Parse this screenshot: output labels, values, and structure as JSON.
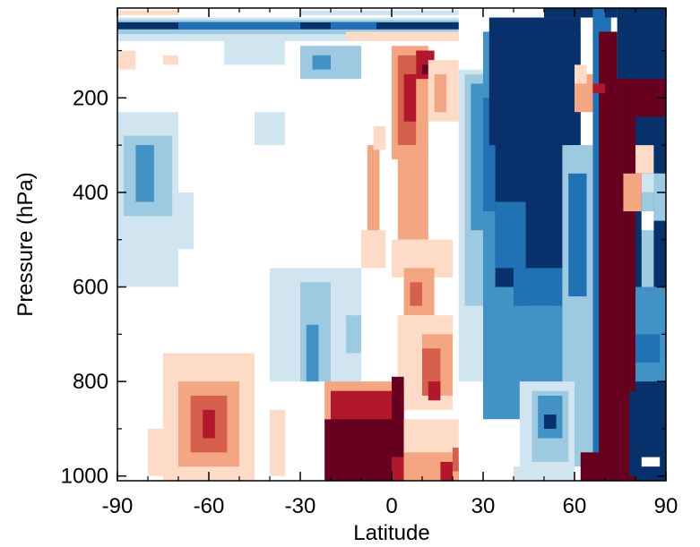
{
  "chart_data": {
    "type": "heatmap",
    "title": "",
    "xlabel": "Latitude",
    "ylabel": "Pressure (hPa)",
    "xlim": [
      -90,
      90
    ],
    "ylim": [
      1010,
      10
    ],
    "x_ticks": [
      -90,
      -60,
      -30,
      0,
      30,
      60,
      90
    ],
    "x_tick_labels": [
      "-90",
      "-60",
      "-30",
      "0",
      "30",
      "60",
      "90"
    ],
    "y_ticks": [
      200,
      400,
      600,
      800,
      1000
    ],
    "y_tick_labels": [
      "200",
      "400",
      "600",
      "800",
      "1000"
    ],
    "grid": false,
    "legend": "none",
    "colors": {
      "-3": "#08306b",
      "-2": "#2171b5",
      "-1.5": "#4292c6",
      "-1": "#9ecae1",
      "-0.5": "#d1e5f0",
      "0": "#ffffff",
      "0.5": "#fddbc7",
      "1": "#f4a582",
      "1.5": "#d6604d",
      "2": "#b2182b",
      "3": "#67001f"
    },
    "regions": [
      {
        "lat": [
          -90,
          90
        ],
        "p": [
          10,
          1010
        ],
        "v": 0
      },
      {
        "lat": [
          -90,
          60
        ],
        "p": [
          30,
          80
        ],
        "v": -0.5
      },
      {
        "lat": [
          -90,
          52
        ],
        "p": [
          35,
          65
        ],
        "v": -1
      },
      {
        "lat": [
          -90,
          50
        ],
        "p": [
          40,
          55
        ],
        "v": -3
      },
      {
        "lat": [
          -70,
          -30
        ],
        "p": [
          40,
          55
        ],
        "v": -2
      },
      {
        "lat": [
          -20,
          -5
        ],
        "p": [
          40,
          55
        ],
        "v": -2
      },
      {
        "lat": [
          -10,
          6
        ],
        "p": [
          62,
          75
        ],
        "v": 2
      },
      {
        "lat": [
          -15,
          30
        ],
        "p": [
          60,
          80
        ],
        "v": 0.5
      },
      {
        "lat": [
          -90,
          -70
        ],
        "p": [
          15,
          25
        ],
        "v": 0.5
      },
      {
        "lat": [
          -30,
          30
        ],
        "p": [
          15,
          25
        ],
        "v": -0.5
      },
      {
        "lat": [
          40,
          70
        ],
        "p": [
          15,
          25
        ],
        "v": -0.5
      },
      {
        "lat": [
          -55,
          -35
        ],
        "p": [
          70,
          130
        ],
        "v": -0.5
      },
      {
        "lat": [
          -30,
          -10
        ],
        "p": [
          90,
          160
        ],
        "v": -1
      },
      {
        "lat": [
          -26,
          -20
        ],
        "p": [
          110,
          140
        ],
        "v": -1.5
      },
      {
        "lat": [
          -90,
          -84
        ],
        "p": [
          100,
          140
        ],
        "v": 0.5
      },
      {
        "lat": [
          -75,
          -70
        ],
        "p": [
          110,
          130
        ],
        "v": 0.5
      },
      {
        "lat": [
          -45,
          -35
        ],
        "p": [
          230,
          300
        ],
        "v": -0.5
      },
      {
        "lat": [
          -90,
          -70
        ],
        "p": [
          230,
          600
        ],
        "v": -0.5
      },
      {
        "lat": [
          -88,
          -72
        ],
        "p": [
          280,
          450
        ],
        "v": -1
      },
      {
        "lat": [
          -84,
          -78
        ],
        "p": [
          300,
          420
        ],
        "v": -1.5
      },
      {
        "lat": [
          -70,
          -65
        ],
        "p": [
          400,
          520
        ],
        "v": -0.5
      },
      {
        "lat": [
          -40,
          -10
        ],
        "p": [
          560,
          800
        ],
        "v": -0.5
      },
      {
        "lat": [
          -30,
          -20
        ],
        "p": [
          590,
          800
        ],
        "v": -1
      },
      {
        "lat": [
          -28,
          -24
        ],
        "p": [
          680,
          800
        ],
        "v": -1.5
      },
      {
        "lat": [
          -15,
          -10
        ],
        "p": [
          660,
          740
        ],
        "v": -1
      },
      {
        "lat": [
          -8,
          -4
        ],
        "p": [
          300,
          500
        ],
        "v": 1
      },
      {
        "lat": [
          -10,
          -2
        ],
        "p": [
          480,
          560
        ],
        "v": 0.5
      },
      {
        "lat": [
          -6,
          -2
        ],
        "p": [
          260,
          310
        ],
        "v": 0.5
      },
      {
        "lat": [
          0,
          12
        ],
        "p": [
          90,
          330
        ],
        "v": 1
      },
      {
        "lat": [
          2,
          8
        ],
        "p": [
          110,
          300
        ],
        "v": 1.5
      },
      {
        "lat": [
          4,
          8
        ],
        "p": [
          150,
          250
        ],
        "v": 2
      },
      {
        "lat": [
          8,
          14
        ],
        "p": [
          100,
          160
        ],
        "v": 2
      },
      {
        "lat": [
          10,
          12
        ],
        "p": [
          130,
          150
        ],
        "v": 3
      },
      {
        "lat": [
          12,
          22
        ],
        "p": [
          120,
          250
        ],
        "v": 0.5
      },
      {
        "lat": [
          14,
          18
        ],
        "p": [
          150,
          230
        ],
        "v": 1
      },
      {
        "lat": [
          2,
          12
        ],
        "p": [
          300,
          500
        ],
        "v": 1
      },
      {
        "lat": [
          0,
          20
        ],
        "p": [
          500,
          580
        ],
        "v": 0.5
      },
      {
        "lat": [
          4,
          14
        ],
        "p": [
          560,
          660
        ],
        "v": 1
      },
      {
        "lat": [
          6,
          10
        ],
        "p": [
          590,
          640
        ],
        "v": 1.5
      },
      {
        "lat": [
          2,
          20
        ],
        "p": [
          660,
          860
        ],
        "v": 0.5
      },
      {
        "lat": [
          10,
          20
        ],
        "p": [
          700,
          830
        ],
        "v": 1
      },
      {
        "lat": [
          10,
          16
        ],
        "p": [
          730,
          830
        ],
        "v": 1.5
      },
      {
        "lat": [
          12,
          16
        ],
        "p": [
          800,
          840
        ],
        "v": 2
      },
      {
        "lat": [
          -75,
          -45
        ],
        "p": [
          740,
          1010
        ],
        "v": 0.5
      },
      {
        "lat": [
          -70,
          -50
        ],
        "p": [
          800,
          980
        ],
        "v": 1
      },
      {
        "lat": [
          -66,
          -54
        ],
        "p": [
          830,
          950
        ],
        "v": 1.5
      },
      {
        "lat": [
          -62,
          -58
        ],
        "p": [
          860,
          920
        ],
        "v": 2
      },
      {
        "lat": [
          -80,
          -75
        ],
        "p": [
          900,
          1000
        ],
        "v": 0.5
      },
      {
        "lat": [
          -40,
          -35
        ],
        "p": [
          860,
          1000
        ],
        "v": 0.5
      },
      {
        "lat": [
          -22,
          0
        ],
        "p": [
          800,
          1010
        ],
        "v": 1
      },
      {
        "lat": [
          -20,
          4
        ],
        "p": [
          820,
          1010
        ],
        "v": 2
      },
      {
        "lat": [
          -22,
          0
        ],
        "p": [
          880,
          1010
        ],
        "v": 3
      },
      {
        "lat": [
          0,
          4
        ],
        "p": [
          790,
          960
        ],
        "v": 3
      },
      {
        "lat": [
          4,
          26
        ],
        "p": [
          880,
          1010
        ],
        "v": 0.5
      },
      {
        "lat": [
          4,
          26
        ],
        "p": [
          950,
          1010
        ],
        "v": 1
      },
      {
        "lat": [
          16,
          20
        ],
        "p": [
          970,
          1010
        ],
        "v": 2
      },
      {
        "lat": [
          20,
          28
        ],
        "p": [
          930,
          960
        ],
        "v": 0.5
      },
      {
        "lat": [
          20,
          36
        ],
        "p": [
          940,
          990
        ],
        "v": 1.5
      },
      {
        "lat": [
          22,
          36
        ],
        "p": [
          970,
          1010
        ],
        "v": 3
      },
      {
        "lat": [
          22,
          70
        ],
        "p": [
          10,
          1010
        ],
        "v": 0
      },
      {
        "lat": [
          50,
          70
        ],
        "p": [
          10,
          30
        ],
        "v": -3
      },
      {
        "lat": [
          22,
          30
        ],
        "p": [
          140,
          800
        ],
        "v": -0.5
      },
      {
        "lat": [
          24,
          30
        ],
        "p": [
          150,
          640
        ],
        "v": -1
      },
      {
        "lat": [
          26,
          30
        ],
        "p": [
          170,
          480
        ],
        "v": -1.5
      },
      {
        "lat": [
          30,
          62
        ],
        "p": [
          60,
          880
        ],
        "v": -1.5
      },
      {
        "lat": [
          30,
          34
        ],
        "p": [
          200,
          440
        ],
        "v": -2
      },
      {
        "lat": [
          32,
          62
        ],
        "p": [
          30,
          300
        ],
        "v": -3
      },
      {
        "lat": [
          34,
          58
        ],
        "p": [
          200,
          600
        ],
        "v": -3
      },
      {
        "lat": [
          34,
          44
        ],
        "p": [
          420,
          560
        ],
        "v": -2
      },
      {
        "lat": [
          40,
          56
        ],
        "p": [
          560,
          640
        ],
        "v": -2
      },
      {
        "lat": [
          44,
          54
        ],
        "p": [
          640,
          760
        ],
        "v": -1.5
      },
      {
        "lat": [
          56,
          66
        ],
        "p": [
          300,
          980
        ],
        "v": -1
      },
      {
        "lat": [
          58,
          64
        ],
        "p": [
          360,
          620
        ],
        "v": -2
      },
      {
        "lat": [
          60,
          66
        ],
        "p": [
          150,
          230
        ],
        "v": 1
      },
      {
        "lat": [
          60,
          64
        ],
        "p": [
          130,
          170
        ],
        "v": 0.5
      },
      {
        "lat": [
          42,
          60
        ],
        "p": [
          800,
          1010
        ],
        "v": -0.5
      },
      {
        "lat": [
          46,
          58
        ],
        "p": [
          820,
          970
        ],
        "v": -1
      },
      {
        "lat": [
          48,
          56
        ],
        "p": [
          830,
          920
        ],
        "v": -1.5
      },
      {
        "lat": [
          50,
          54
        ],
        "p": [
          870,
          900
        ],
        "v": -3
      },
      {
        "lat": [
          28,
          42
        ],
        "p": [
          880,
          1010
        ],
        "v": 0
      },
      {
        "lat": [
          40,
          44
        ],
        "p": [
          980,
          1010
        ],
        "v": -0.5
      },
      {
        "lat": [
          66,
          72
        ],
        "p": [
          10,
          1010
        ],
        "v": -2
      },
      {
        "lat": [
          70,
          74
        ],
        "p": [
          10,
          30
        ],
        "v": -3
      },
      {
        "lat": [
          68,
          74
        ],
        "p": [
          60,
          1010
        ],
        "v": 3
      },
      {
        "lat": [
          66,
          70
        ],
        "p": [
          170,
          190
        ],
        "v": 2
      },
      {
        "lat": [
          62,
          70
        ],
        "p": [
          950,
          1010
        ],
        "v": 3
      },
      {
        "lat": [
          74,
          90
        ],
        "p": [
          10,
          1010
        ],
        "v": -3
      },
      {
        "lat": [
          74,
          90
        ],
        "p": [
          160,
          240
        ],
        "v": 3
      },
      {
        "lat": [
          74,
          80
        ],
        "p": [
          240,
          1010
        ],
        "v": 3
      },
      {
        "lat": [
          80,
          86
        ],
        "p": [
          300,
          360
        ],
        "v": 0.5
      },
      {
        "lat": [
          76,
          82
        ],
        "p": [
          360,
          440
        ],
        "v": 1
      },
      {
        "lat": [
          82,
          88
        ],
        "p": [
          360,
          400
        ],
        "v": -0.5
      },
      {
        "lat": [
          82,
          86
        ],
        "p": [
          400,
          600
        ],
        "v": -1
      },
      {
        "lat": [
          82,
          86
        ],
        "p": [
          440,
          480
        ],
        "v": 0
      },
      {
        "lat": [
          86,
          90
        ],
        "p": [
          360,
          460
        ],
        "v": -1
      },
      {
        "lat": [
          80,
          90
        ],
        "p": [
          600,
          800
        ],
        "v": -1.5
      },
      {
        "lat": [
          80,
          88
        ],
        "p": [
          700,
          760
        ],
        "v": -2
      },
      {
        "lat": [
          78,
          82
        ],
        "p": [
          820,
          1000
        ],
        "v": -3
      },
      {
        "lat": [
          82,
          88
        ],
        "p": [
          960,
          980
        ],
        "v": 0
      }
    ]
  }
}
